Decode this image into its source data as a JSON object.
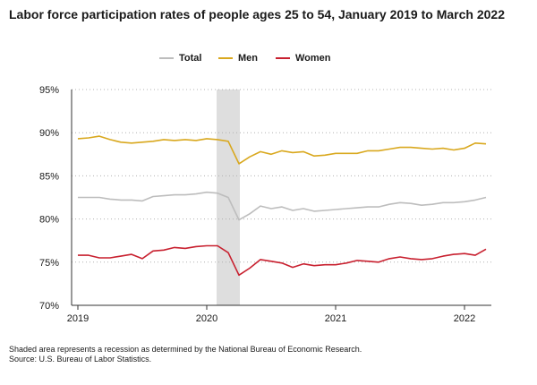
{
  "header": {
    "title": "Labor force participation rates of people ages 25 to 54, January 2019 to March 2022"
  },
  "footer": {
    "note": "Shaded area represents a recession as determined by the National Bureau of Economic Research.",
    "source": "Source: U.S. Bureau of Labor Statistics."
  },
  "colors": {
    "total": "#bdbdbd",
    "men": "#d9a81e",
    "women": "#c8202f",
    "recession": "#dedede",
    "grid": "#b0b0b0",
    "axis": "#333333"
  },
  "chart_data": {
    "type": "line",
    "title": "Labor force participation rates of people ages 25 to 54, January 2019 to March 2022",
    "x_start": "2019-01",
    "x_ticks": [
      "2019",
      "2020",
      "2021",
      "2022"
    ],
    "y_ticks": [
      "70%",
      "75%",
      "80%",
      "85%",
      "90%",
      "95%"
    ],
    "ylim": [
      70,
      95
    ],
    "grid": "horizontal dotted",
    "legend_position": "top",
    "recession": {
      "start": "2020-02",
      "end": "2020-04"
    },
    "series": [
      {
        "name": "Total",
        "color_key": "total",
        "values": [
          82.5,
          82.5,
          82.5,
          82.3,
          82.2,
          82.2,
          82.1,
          82.6,
          82.7,
          82.8,
          82.8,
          82.9,
          83.1,
          83.0,
          82.5,
          79.9,
          80.6,
          81.5,
          81.2,
          81.4,
          81.0,
          81.2,
          80.9,
          81.0,
          81.1,
          81.2,
          81.3,
          81.4,
          81.4,
          81.7,
          81.9,
          81.8,
          81.6,
          81.7,
          81.9,
          81.9,
          82.0,
          82.2,
          82.5
        ]
      },
      {
        "name": "Men",
        "color_key": "men",
        "values": [
          89.3,
          89.4,
          89.6,
          89.2,
          88.9,
          88.8,
          88.9,
          89.0,
          89.2,
          89.1,
          89.2,
          89.1,
          89.3,
          89.2,
          89.0,
          86.4,
          87.2,
          87.8,
          87.5,
          87.9,
          87.7,
          87.8,
          87.3,
          87.4,
          87.6,
          87.6,
          87.6,
          87.9,
          87.9,
          88.1,
          88.3,
          88.3,
          88.2,
          88.1,
          88.2,
          88.0,
          88.2,
          88.8,
          88.7
        ]
      },
      {
        "name": "Women",
        "color_key": "women",
        "values": [
          75.8,
          75.8,
          75.5,
          75.5,
          75.7,
          75.9,
          75.4,
          76.3,
          76.4,
          76.7,
          76.6,
          76.8,
          76.9,
          76.9,
          76.1,
          73.5,
          74.3,
          75.3,
          75.1,
          74.9,
          74.4,
          74.8,
          74.6,
          74.7,
          74.7,
          74.9,
          75.2,
          75.1,
          75.0,
          75.4,
          75.6,
          75.4,
          75.3,
          75.4,
          75.7,
          75.9,
          76.0,
          75.8,
          76.5
        ]
      }
    ]
  }
}
